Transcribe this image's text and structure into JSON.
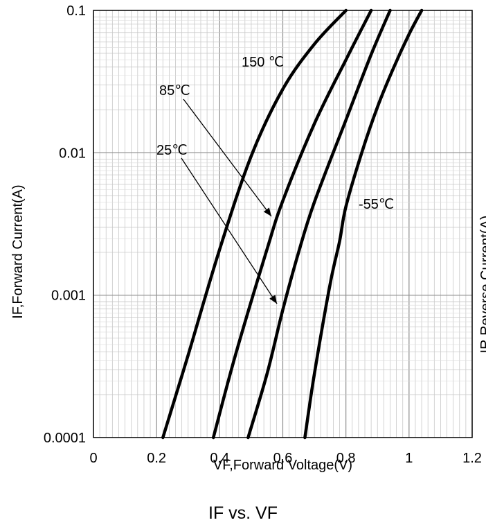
{
  "chart_data": {
    "type": "line",
    "title": "",
    "caption": "IF vs. VF",
    "xlabel": "VF,Forward Voltage(V)",
    "ylabel": "IF,Forward Current(A)",
    "xlim": [
      0,
      1.2
    ],
    "ylim": [
      0.0001,
      0.1
    ],
    "yscale": "log",
    "grid": true,
    "x_ticks": [
      "0",
      "0.2",
      "0.4",
      "0.6",
      "0.8",
      "1",
      "1.2"
    ],
    "y_ticks": [
      "0.0001",
      "0.001",
      "0.01",
      "0.1"
    ],
    "series": [
      {
        "name": "150 ℃",
        "x": [
          0.22,
          0.3,
          0.4,
          0.5,
          0.6,
          0.7,
          0.8
        ],
        "y": [
          0.0001,
          0.00038,
          0.0021,
          0.0095,
          0.028,
          0.058,
          0.1
        ]
      },
      {
        "name": "85℃",
        "x": [
          0.38,
          0.45,
          0.55,
          0.6,
          0.7,
          0.8,
          0.88
        ],
        "y": [
          0.0001,
          0.00038,
          0.0021,
          0.0046,
          0.016,
          0.045,
          0.1
        ]
      },
      {
        "name": "25℃",
        "x": [
          0.49,
          0.55,
          0.6,
          0.65,
          0.7,
          0.8,
          0.88,
          0.94
        ],
        "y": [
          0.0001,
          0.00028,
          0.00079,
          0.002,
          0.0045,
          0.017,
          0.049,
          0.1
        ]
      },
      {
        "name": "-55℃",
        "x": [
          0.67,
          0.7,
          0.75,
          0.78,
          0.8,
          0.85,
          0.9,
          0.95,
          1.0,
          1.04
        ],
        "y": [
          0.0001,
          0.00028,
          0.0012,
          0.0024,
          0.0042,
          0.01,
          0.021,
          0.039,
          0.068,
          0.1
        ]
      }
    ],
    "annotations": [
      {
        "text": "150 ℃",
        "target_series": "150 ℃"
      },
      {
        "text": "85℃",
        "target_series": "85℃",
        "arrow": true
      },
      {
        "text": "25℃",
        "target_series": "25℃",
        "arrow": true
      },
      {
        "text": "-55℃",
        "target_series": "-55℃"
      }
    ],
    "right_partial_label": "IR,Reverse Current(A)"
  }
}
